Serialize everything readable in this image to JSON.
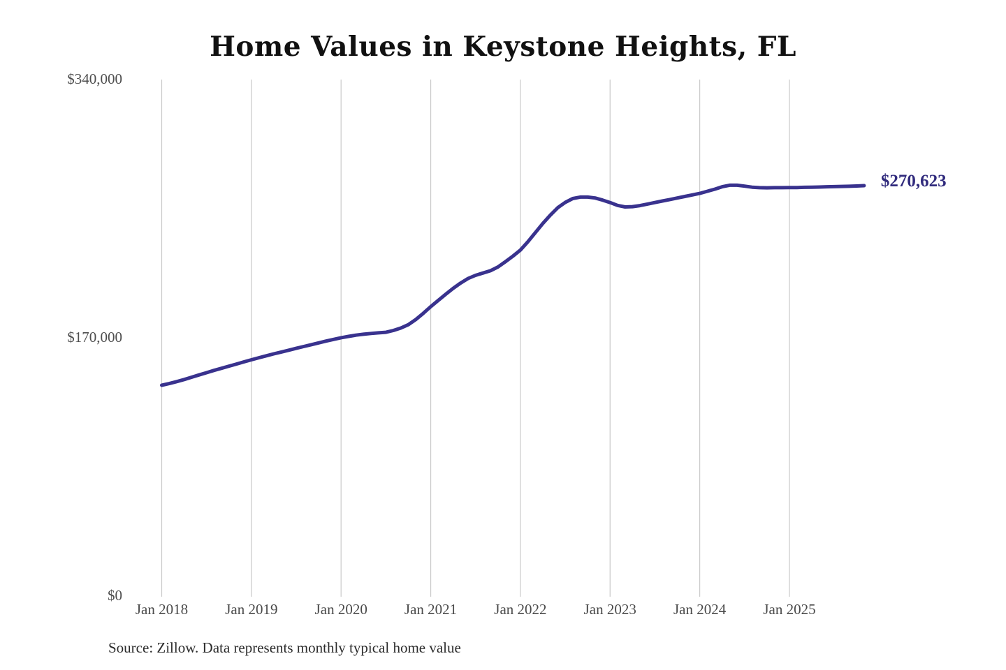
{
  "chart": {
    "title": "Home Values in Keystone Heights, FL",
    "latest_label": "$270,623",
    "source": "Source: Zillow. Data represents monthly typical home value",
    "colors": {
      "line": "#39328e",
      "latest_label_text": "#312b7d",
      "gridline": "#c9c9c9",
      "axis_text": "#4a4a4a",
      "title_text": "#111111"
    }
  },
  "chart_data": {
    "type": "line",
    "title": "Home Values in Keystone Heights, FL",
    "ylabel": "",
    "xlabel": "",
    "ylim": [
      0,
      340000
    ],
    "grid": "vertical-only",
    "legend": "none",
    "annotation": {
      "text": "$270,623",
      "position": "end-of-line"
    },
    "y_ticks": [
      {
        "value": 340000,
        "label": "$340,000"
      },
      {
        "value": 170000,
        "label": "$170,000"
      },
      {
        "value": 0,
        "label": "$0"
      }
    ],
    "x_ticks": [
      {
        "month_index": 0,
        "label": "Jan 2018"
      },
      {
        "month_index": 12,
        "label": "Jan 2019"
      },
      {
        "month_index": 24,
        "label": "Jan 2020"
      },
      {
        "month_index": 36,
        "label": "Jan 2021"
      },
      {
        "month_index": 48,
        "label": "Jan 2022"
      },
      {
        "month_index": 60,
        "label": "Jan 2023"
      },
      {
        "month_index": 72,
        "label": "Jan 2024"
      },
      {
        "month_index": 84,
        "label": "Jan 2025"
      }
    ],
    "x": [
      "2018-01",
      "2018-02",
      "2018-03",
      "2018-04",
      "2018-05",
      "2018-06",
      "2018-07",
      "2018-08",
      "2018-09",
      "2018-10",
      "2018-11",
      "2018-12",
      "2019-01",
      "2019-02",
      "2019-03",
      "2019-04",
      "2019-05",
      "2019-06",
      "2019-07",
      "2019-08",
      "2019-09",
      "2019-10",
      "2019-11",
      "2019-12",
      "2020-01",
      "2020-02",
      "2020-03",
      "2020-04",
      "2020-05",
      "2020-06",
      "2020-07",
      "2020-08",
      "2020-09",
      "2020-10",
      "2020-11",
      "2020-12",
      "2021-01",
      "2021-02",
      "2021-03",
      "2021-04",
      "2021-05",
      "2021-06",
      "2021-07",
      "2021-08",
      "2021-09",
      "2021-10",
      "2021-11",
      "2021-12",
      "2022-01",
      "2022-02",
      "2022-03",
      "2022-04",
      "2022-05",
      "2022-06",
      "2022-07",
      "2022-08",
      "2022-09",
      "2022-10",
      "2022-11",
      "2022-12",
      "2023-01",
      "2023-02",
      "2023-03",
      "2023-04",
      "2023-05",
      "2023-06",
      "2023-07",
      "2023-08",
      "2023-09",
      "2023-10",
      "2023-11",
      "2023-12",
      "2024-01",
      "2024-02",
      "2024-03",
      "2024-04",
      "2024-05",
      "2024-06",
      "2024-07",
      "2024-08",
      "2024-09",
      "2024-10",
      "2024-11",
      "2024-12",
      "2025-01",
      "2025-02",
      "2025-03",
      "2025-04",
      "2025-05",
      "2025-06",
      "2025-07",
      "2025-08",
      "2025-09",
      "2025-10",
      "2025-11"
    ],
    "values": [
      139200,
      140300,
      141600,
      143000,
      144500,
      146000,
      147500,
      149000,
      150400,
      151800,
      153200,
      154600,
      156000,
      157300,
      158600,
      159900,
      161100,
      162300,
      163500,
      164700,
      165900,
      167100,
      168300,
      169400,
      170500,
      171400,
      172200,
      172800,
      173300,
      173700,
      174100,
      175300,
      176900,
      179100,
      182500,
      186600,
      191000,
      195100,
      199100,
      203000,
      206500,
      209500,
      211600,
      213100,
      214600,
      217100,
      220600,
      224200,
      228200,
      233700,
      239700,
      245700,
      251200,
      256100,
      259600,
      262100,
      263100,
      263100,
      262500,
      261100,
      259500,
      257600,
      256600,
      256800,
      257500,
      258500,
      259500,
      260500,
      261500,
      262500,
      263500,
      264500,
      265500,
      266900,
      268300,
      269900,
      270900,
      270900,
      270300,
      269600,
      269300,
      269200,
      269300,
      269300,
      269400,
      269400,
      269500,
      269600,
      269700,
      269900,
      270000,
      270100,
      270200,
      270400,
      270623
    ]
  }
}
